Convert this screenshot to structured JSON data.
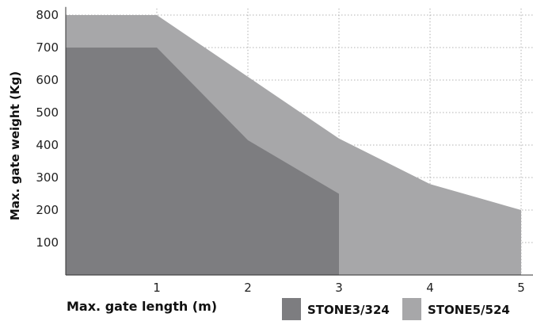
{
  "chart_data": {
    "type": "area",
    "xlabel": "Max. gate length (m)",
    "ylabel": "Max. gate weight (Kg)",
    "x_ticks": [
      "1",
      "2",
      "3",
      "4",
      "5"
    ],
    "y_ticks": [
      "100",
      "200",
      "300",
      "400",
      "500",
      "600",
      "700",
      "800"
    ],
    "xlim": [
      0,
      5.25
    ],
    "ylim": [
      0,
      820
    ],
    "grid": true,
    "legend_position": "bottom",
    "series": [
      {
        "name": "STONE5/524",
        "color": "#a7a7a9",
        "points": [
          [
            0,
            800
          ],
          [
            1,
            800
          ],
          [
            2,
            610
          ],
          [
            3,
            420
          ],
          [
            4,
            280
          ],
          [
            5,
            200
          ]
        ]
      },
      {
        "name": "STONE3/324",
        "color": "#7d7d80",
        "points": [
          [
            0,
            700
          ],
          [
            1,
            700
          ],
          [
            2,
            415
          ],
          [
            3,
            250
          ]
        ]
      }
    ]
  }
}
